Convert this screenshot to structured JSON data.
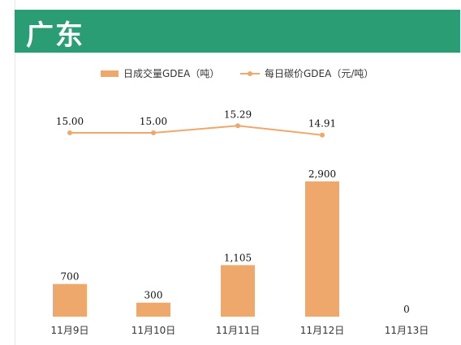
{
  "header": {
    "title": "广东"
  },
  "chart_data": {
    "type": "bar+line",
    "categories": [
      "11月9日",
      "11月10日",
      "11月11日",
      "11月12日",
      "11月13日"
    ],
    "series": [
      {
        "name": "日成交量GDEA（吨）",
        "type": "bar",
        "values": [
          700,
          300,
          1105,
          2900,
          0
        ],
        "labels": [
          "700",
          "300",
          "1,105",
          "2,900",
          "0"
        ],
        "color": "#eea86c"
      },
      {
        "name": "每日碳价GDEA（元/吨）",
        "type": "line",
        "values": [
          15.0,
          15.0,
          15.29,
          14.91,
          null
        ],
        "labels": [
          "15.00",
          "15.00",
          "15.29",
          "14.91",
          ""
        ],
        "color": "#eea86c"
      }
    ],
    "legend_position": "top-center",
    "grid": false
  }
}
